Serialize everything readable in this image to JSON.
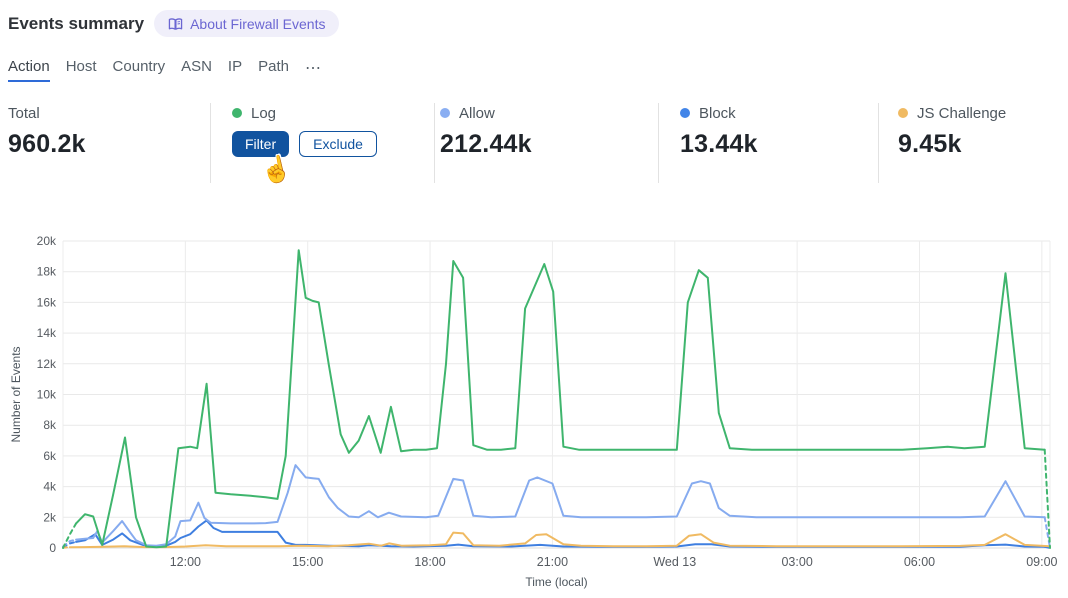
{
  "header": {
    "title": "Events summary",
    "about_badge": "About Firewall Events"
  },
  "tabs": {
    "items": [
      {
        "label": "Action",
        "active": true
      },
      {
        "label": "Host",
        "active": false
      },
      {
        "label": "Country",
        "active": false
      },
      {
        "label": "ASN",
        "active": false
      },
      {
        "label": "IP",
        "active": false
      },
      {
        "label": "Path",
        "active": false
      }
    ],
    "more_label": "⋯"
  },
  "stats": {
    "total": {
      "label": "Total",
      "value": "960.2k"
    },
    "cards": [
      {
        "label": "Log",
        "color": "#3fb56d",
        "value": "",
        "filter_label": "Filter",
        "exclude_label": "Exclude",
        "hovered": true
      },
      {
        "label": "Allow",
        "color": "#8aaef2",
        "value": "212.44k"
      },
      {
        "label": "Block",
        "color": "#4285e8",
        "value": "13.44k"
      },
      {
        "label": "JS Challenge",
        "color": "#f0ba62",
        "value": "9.45k"
      }
    ]
  },
  "chart_data": {
    "type": "line",
    "xlabel": "Time (local)",
    "ylabel": "Number of Events",
    "x_unit": "hours from chart start (12:00 tick is at h=3, chart spans ~24h ending Wed 13 09:00)",
    "x_domain_hours": [
      0,
      24.2
    ],
    "ylim_k": [
      0,
      20
    ],
    "y_ticks_k": [
      0,
      2,
      4,
      6,
      8,
      10,
      12,
      14,
      16,
      18,
      20
    ],
    "x_ticks": [
      {
        "h": 3,
        "label": "12:00"
      },
      {
        "h": 6,
        "label": "15:00"
      },
      {
        "h": 9,
        "label": "18:00"
      },
      {
        "h": 12,
        "label": "21:00"
      },
      {
        "h": 15,
        "label": "Wed 13"
      },
      {
        "h": 18,
        "label": "03:00"
      },
      {
        "h": 21,
        "label": "06:00"
      },
      {
        "h": 24,
        "label": "09:00"
      }
    ],
    "grid": true,
    "values_unit": "thousands of events (k)",
    "series": [
      {
        "name": "Block",
        "color": "#3f7fe0",
        "dash_head": 2,
        "dash_tail": 1,
        "points": [
          [
            0,
            0.05
          ],
          [
            0.17,
            0.3
          ],
          [
            0.32,
            0.4
          ],
          [
            0.54,
            0.5
          ],
          [
            0.79,
            0.9
          ],
          [
            0.96,
            0.2
          ],
          [
            1.23,
            0.55
          ],
          [
            1.45,
            0.95
          ],
          [
            1.65,
            0.5
          ],
          [
            2.04,
            0.12
          ],
          [
            2.53,
            0.15
          ],
          [
            2.75,
            0.4
          ],
          [
            2.88,
            0.65
          ],
          [
            3.12,
            0.9
          ],
          [
            3.32,
            1.4
          ],
          [
            3.52,
            1.8
          ],
          [
            3.69,
            1.3
          ],
          [
            3.9,
            1.05
          ],
          [
            4.6,
            1.05
          ],
          [
            5.26,
            1.05
          ],
          [
            5.46,
            0.35
          ],
          [
            5.7,
            0.2
          ],
          [
            5.95,
            0.2
          ],
          [
            6.52,
            0.15
          ],
          [
            7.25,
            0.12
          ],
          [
            7.5,
            0.18
          ],
          [
            8.04,
            0.12
          ],
          [
            8.6,
            0.1
          ],
          [
            9.39,
            0.15
          ],
          [
            9.69,
            0.22
          ],
          [
            10.06,
            0.12
          ],
          [
            11,
            0.1
          ],
          [
            11.7,
            0.2
          ],
          [
            12.27,
            0.1
          ],
          [
            13.2,
            0.08
          ],
          [
            14.2,
            0.08
          ],
          [
            15.05,
            0.1
          ],
          [
            15.5,
            0.25
          ],
          [
            15.9,
            0.25
          ],
          [
            16.35,
            0.1
          ],
          [
            17.5,
            0.08
          ],
          [
            19,
            0.08
          ],
          [
            20.5,
            0.08
          ],
          [
            22,
            0.08
          ],
          [
            22.6,
            0.18
          ],
          [
            23.11,
            0.22
          ],
          [
            23.58,
            0.1
          ],
          [
            24.07,
            0.08
          ],
          [
            24.2,
            0
          ]
        ]
      },
      {
        "name": "JS Challenge",
        "color": "#f0ba62",
        "dash_head": 1,
        "dash_tail": 0,
        "points": [
          [
            0,
            0.02
          ],
          [
            0.17,
            0.05
          ],
          [
            0.5,
            0.06
          ],
          [
            1,
            0.08
          ],
          [
            1.5,
            0.12
          ],
          [
            2,
            0.06
          ],
          [
            2.5,
            0.06
          ],
          [
            3,
            0.1
          ],
          [
            3.5,
            0.18
          ],
          [
            4,
            0.12
          ],
          [
            4.6,
            0.12
          ],
          [
            5.3,
            0.12
          ],
          [
            5.8,
            0.15
          ],
          [
            6.5,
            0.12
          ],
          [
            7,
            0.18
          ],
          [
            7.5,
            0.28
          ],
          [
            7.8,
            0.15
          ],
          [
            8,
            0.3
          ],
          [
            8.3,
            0.15
          ],
          [
            9,
            0.18
          ],
          [
            9.39,
            0.25
          ],
          [
            9.57,
            1.0
          ],
          [
            9.81,
            0.95
          ],
          [
            10.06,
            0.18
          ],
          [
            10.7,
            0.15
          ],
          [
            11.33,
            0.3
          ],
          [
            11.6,
            0.85
          ],
          [
            11.85,
            0.9
          ],
          [
            12.27,
            0.25
          ],
          [
            12.7,
            0.15
          ],
          [
            13.5,
            0.12
          ],
          [
            14.3,
            0.12
          ],
          [
            15.05,
            0.15
          ],
          [
            15.35,
            0.8
          ],
          [
            15.64,
            0.9
          ],
          [
            15.95,
            0.35
          ],
          [
            16.35,
            0.15
          ],
          [
            17.5,
            0.12
          ],
          [
            19,
            0.12
          ],
          [
            20.5,
            0.12
          ],
          [
            22,
            0.14
          ],
          [
            22.6,
            0.2
          ],
          [
            23.11,
            0.9
          ],
          [
            23.58,
            0.2
          ],
          [
            24.2,
            0.12
          ]
        ]
      },
      {
        "name": "Allow",
        "color": "#86abef",
        "dash_head": 2,
        "dash_tail": 1,
        "points": [
          [
            0,
            0.1
          ],
          [
            0.17,
            0.45
          ],
          [
            0.32,
            0.55
          ],
          [
            0.54,
            0.6
          ],
          [
            0.74,
            0.65
          ],
          [
            0.84,
            1.1
          ],
          [
            0.96,
            0.35
          ],
          [
            1.23,
            1.1
          ],
          [
            1.45,
            1.75
          ],
          [
            1.65,
            1.0
          ],
          [
            1.79,
            0.5
          ],
          [
            2.04,
            0.18
          ],
          [
            2.29,
            0.15
          ],
          [
            2.53,
            0.25
          ],
          [
            2.75,
            0.75
          ],
          [
            2.88,
            1.75
          ],
          [
            3.12,
            1.8
          ],
          [
            3.32,
            2.95
          ],
          [
            3.47,
            1.95
          ],
          [
            3.62,
            1.65
          ],
          [
            4.11,
            1.6
          ],
          [
            4.6,
            1.6
          ],
          [
            4.97,
            1.62
          ],
          [
            5.26,
            1.7
          ],
          [
            5.51,
            3.6
          ],
          [
            5.7,
            5.4
          ],
          [
            5.95,
            4.6
          ],
          [
            6.12,
            4.55
          ],
          [
            6.27,
            4.5
          ],
          [
            6.52,
            3.3
          ],
          [
            6.74,
            2.6
          ],
          [
            7.01,
            2.05
          ],
          [
            7.25,
            2.0
          ],
          [
            7.5,
            2.4
          ],
          [
            7.72,
            2.0
          ],
          [
            7.99,
            2.3
          ],
          [
            8.29,
            2.05
          ],
          [
            8.9,
            2.0
          ],
          [
            9.2,
            2.1
          ],
          [
            9.57,
            4.5
          ],
          [
            9.81,
            4.4
          ],
          [
            10.06,
            2.1
          ],
          [
            10.5,
            2.0
          ],
          [
            11.09,
            2.05
          ],
          [
            11.43,
            4.4
          ],
          [
            11.63,
            4.6
          ],
          [
            12,
            4.2
          ],
          [
            12.27,
            2.1
          ],
          [
            12.7,
            2.0
          ],
          [
            13.5,
            2.0
          ],
          [
            14.3,
            2.0
          ],
          [
            15.05,
            2.05
          ],
          [
            15.42,
            4.2
          ],
          [
            15.64,
            4.35
          ],
          [
            15.86,
            4.2
          ],
          [
            16.08,
            2.6
          ],
          [
            16.35,
            2.1
          ],
          [
            17,
            2.0
          ],
          [
            18,
            2.0
          ],
          [
            19,
            2.0
          ],
          [
            20,
            2.0
          ],
          [
            21,
            2.0
          ],
          [
            22,
            2.0
          ],
          [
            22.6,
            2.05
          ],
          [
            23.11,
            4.35
          ],
          [
            23.58,
            2.05
          ],
          [
            24.07,
            2.0
          ],
          [
            24.2,
            0
          ]
        ]
      },
      {
        "name": "Log",
        "color": "#3fb56d",
        "dash_head": 2,
        "dash_tail": 1,
        "points": [
          [
            0,
            0
          ],
          [
            0.17,
            0.9
          ],
          [
            0.32,
            1.6
          ],
          [
            0.54,
            2.2
          ],
          [
            0.74,
            2.05
          ],
          [
            0.96,
            0.2
          ],
          [
            1.23,
            3.5
          ],
          [
            1.52,
            7.2
          ],
          [
            1.79,
            2.0
          ],
          [
            2.04,
            0.1
          ],
          [
            2.29,
            0.05
          ],
          [
            2.53,
            0.1
          ],
          [
            2.83,
            6.5
          ],
          [
            3.12,
            6.6
          ],
          [
            3.29,
            6.5
          ],
          [
            3.52,
            10.7
          ],
          [
            3.74,
            3.6
          ],
          [
            4.11,
            3.5
          ],
          [
            4.6,
            3.4
          ],
          [
            4.97,
            3.3
          ],
          [
            5.26,
            3.2
          ],
          [
            5.46,
            6.0
          ],
          [
            5.78,
            19.4
          ],
          [
            5.95,
            16.3
          ],
          [
            6.12,
            16.1
          ],
          [
            6.27,
            16.0
          ],
          [
            6.52,
            11.9
          ],
          [
            6.81,
            7.4
          ],
          [
            7.01,
            6.2
          ],
          [
            7.25,
            7.0
          ],
          [
            7.5,
            8.6
          ],
          [
            7.79,
            6.2
          ],
          [
            8.04,
            9.2
          ],
          [
            8.29,
            6.3
          ],
          [
            8.6,
            6.4
          ],
          [
            8.9,
            6.4
          ],
          [
            9.17,
            6.5
          ],
          [
            9.39,
            12.0
          ],
          [
            9.57,
            18.7
          ],
          [
            9.81,
            17.6
          ],
          [
            10.06,
            6.7
          ],
          [
            10.4,
            6.4
          ],
          [
            10.74,
            6.4
          ],
          [
            11.09,
            6.5
          ],
          [
            11.33,
            15.6
          ],
          [
            11.8,
            18.5
          ],
          [
            12.02,
            16.7
          ],
          [
            12.27,
            6.6
          ],
          [
            12.66,
            6.4
          ],
          [
            13.2,
            6.4
          ],
          [
            13.82,
            6.4
          ],
          [
            14.43,
            6.4
          ],
          [
            15.05,
            6.4
          ],
          [
            15.32,
            16.0
          ],
          [
            15.59,
            18.1
          ],
          [
            15.81,
            17.6
          ],
          [
            16.08,
            8.8
          ],
          [
            16.35,
            6.5
          ],
          [
            16.89,
            6.4
          ],
          [
            17.51,
            6.4
          ],
          [
            18.12,
            6.4
          ],
          [
            18.74,
            6.4
          ],
          [
            19.35,
            6.4
          ],
          [
            19.96,
            6.4
          ],
          [
            20.58,
            6.4
          ],
          [
            21.19,
            6.5
          ],
          [
            21.69,
            6.6
          ],
          [
            22.1,
            6.5
          ],
          [
            22.6,
            6.6
          ],
          [
            23.11,
            17.9
          ],
          [
            23.58,
            6.5
          ],
          [
            24.07,
            6.4
          ],
          [
            24.2,
            0
          ]
        ]
      }
    ]
  }
}
